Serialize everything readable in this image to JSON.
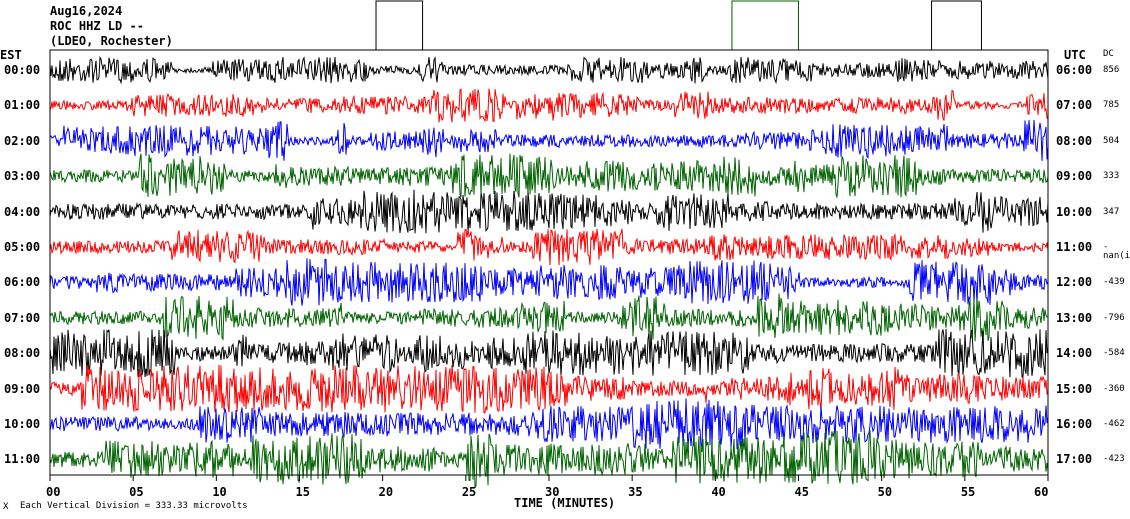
{
  "header": {
    "date": "Aug16,2024",
    "station": "ROC HHZ LD --",
    "network": "(LDEO, Rochester)"
  },
  "left_axis_title": "EST",
  "right_axis_title": "UTC",
  "dc_title": "DC",
  "x_axis_title": "TIME (MINUTES)",
  "footer": {
    "note": "Each Vertical Division = 333.33 microvolts",
    "mark": "X"
  },
  "colors": {
    "black": "#000000",
    "red": "#ff0000",
    "blue": "#0000ff",
    "green": "#006400",
    "dark_red": "#8b0000"
  },
  "chart_data": {
    "type": "line",
    "title": "Aug16,2024 ROC HHZ LD -- (LDEO, Rochester)",
    "xlabel": "TIME (MINUTES)",
    "xlim": [
      0,
      60
    ],
    "x_ticks": [
      "00",
      "05",
      "10",
      "15",
      "20",
      "25",
      "30",
      "35",
      "40",
      "45",
      "50",
      "55",
      "60"
    ],
    "trace_color_cycle": [
      "black",
      "red",
      "blue",
      "green"
    ],
    "rows": [
      {
        "est": "00:00",
        "utc": "06:00",
        "dc": "856",
        "amplitude": 0.35
      },
      {
        "est": "01:00",
        "utc": "07:00",
        "dc": "785",
        "amplitude": 0.45
      },
      {
        "est": "02:00",
        "utc": "08:00",
        "dc": "504",
        "amplitude": 0.55
      },
      {
        "est": "03:00",
        "utc": "09:00",
        "dc": "333",
        "amplitude": 0.6
      },
      {
        "est": "04:00",
        "utc": "10:00",
        "dc": "347",
        "amplitude": 0.6
      },
      {
        "est": "05:00",
        "utc": "11:00",
        "dc": "-nan(iDd",
        "amplitude": 0.6
      },
      {
        "est": "06:00",
        "utc": "12:00",
        "dc": "-439",
        "amplitude": 0.65
      },
      {
        "est": "07:00",
        "utc": "13:00",
        "dc": "-796",
        "amplitude": 0.65
      },
      {
        "est": "08:00",
        "utc": "14:00",
        "dc": "-584",
        "amplitude": 0.65
      },
      {
        "est": "09:00",
        "utc": "15:00",
        "dc": "-360",
        "amplitude": 0.65
      },
      {
        "est": "10:00",
        "utc": "16:00",
        "dc": "-462",
        "amplitude": 0.7
      },
      {
        "est": "11:00",
        "utc": "17:00",
        "dc": "-423",
        "amplitude": 0.75
      }
    ],
    "event_markers": [
      {
        "color": "black",
        "x_start": 19.6,
        "x_end": 22.4
      },
      {
        "color": "green",
        "x_start": 41.0,
        "x_end": 45.0
      },
      {
        "color": "black",
        "x_start": 53.0,
        "x_end": 56.0
      }
    ]
  }
}
